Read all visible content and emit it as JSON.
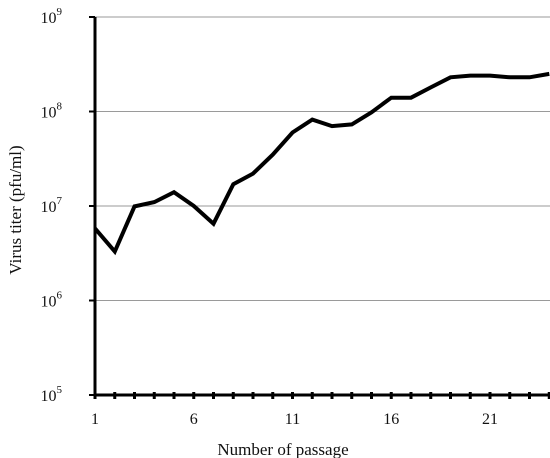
{
  "chart_data": {
    "type": "line",
    "title": "",
    "xlabel": "Number of passage",
    "ylabel": "Virus titer (pfu/ml)",
    "y_scale": "log",
    "ylim": [
      100000,
      1000000000
    ],
    "y_ticks": [
      {
        "base": "10",
        "exp": "5"
      },
      {
        "base": "10",
        "exp": "6"
      },
      {
        "base": "10",
        "exp": "7"
      },
      {
        "base": "10",
        "exp": "8"
      },
      {
        "base": "10",
        "exp": "9"
      }
    ],
    "x_tick_labels": [
      "1",
      "6",
      "11",
      "16",
      "21"
    ],
    "grid": "horizontal",
    "series": [
      {
        "x": [
          1,
          2,
          3,
          4,
          5,
          6,
          7,
          8,
          9,
          10,
          11,
          12,
          13,
          14,
          15,
          16,
          17,
          18,
          19,
          20,
          21,
          22,
          23,
          24
        ],
        "y": [
          5800000,
          3300000,
          9900000,
          11000000,
          14000000,
          10000000,
          6500000,
          17000000,
          22000000,
          35000000,
          60000000,
          82000000,
          70000000,
          73000000,
          98000000,
          140000000,
          140000000,
          180000000,
          230000000,
          240000000,
          240000000,
          230000000,
          230000000,
          250000000
        ]
      }
    ]
  }
}
